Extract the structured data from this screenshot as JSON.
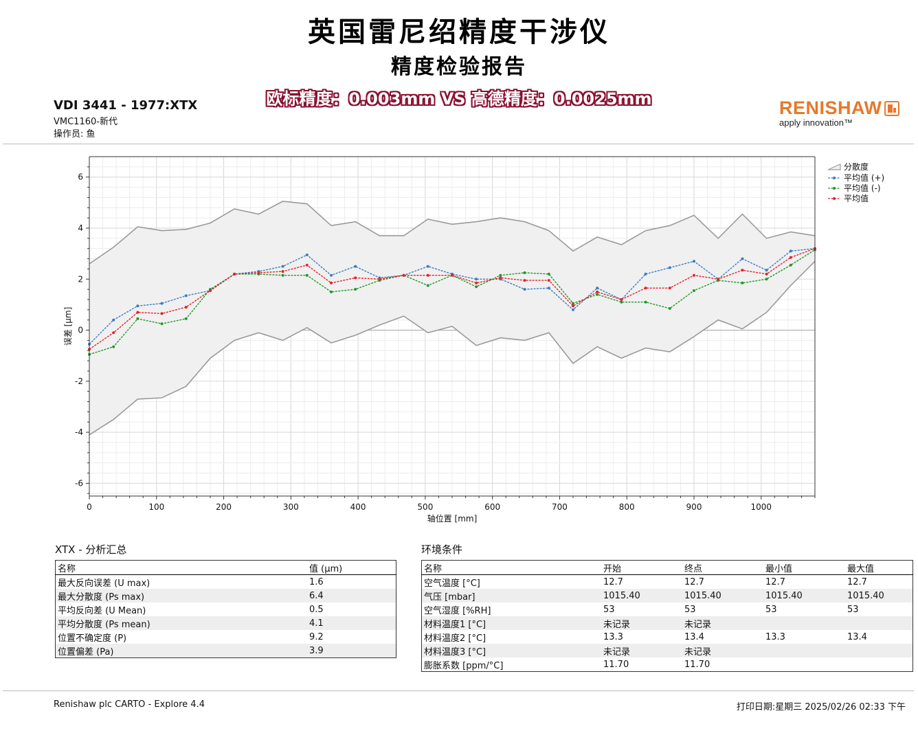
{
  "header": {
    "title": "英国雷尼绍精度干涉仪",
    "subtitle": "精度检验报告",
    "comparison": "欧标精度：0.003mm VS 高德精度：0.0025mm",
    "standard": "VDI 3441 - 1977:XTX",
    "machine": "VMC1160-新代",
    "operator": "操作员: 鱼"
  },
  "logo": {
    "name": "RENISHAW",
    "tagline": "apply innovation™"
  },
  "chart_data": {
    "type": "line",
    "xlabel": "轴位置 [mm]",
    "ylabel": "误差 [μm]",
    "xlim": [
      0,
      1080
    ],
    "ylim": [
      -6.5,
      6.8
    ],
    "xticks": [
      0,
      100,
      200,
      300,
      400,
      500,
      600,
      700,
      800,
      900,
      1000
    ],
    "yticks": [
      -6,
      -4,
      -2,
      0,
      2,
      4,
      6
    ],
    "grid": true,
    "legend_position": "top-right",
    "x": [
      0,
      36,
      72,
      108,
      144,
      180,
      216,
      252,
      288,
      324,
      360,
      396,
      432,
      468,
      504,
      540,
      576,
      612,
      648,
      684,
      720,
      756,
      792,
      828,
      864,
      900,
      936,
      972,
      1008,
      1044,
      1080
    ],
    "band": {
      "name": "分散度",
      "upper": [
        2.6,
        3.25,
        4.05,
        3.9,
        3.95,
        4.2,
        4.75,
        4.55,
        5.05,
        4.95,
        4.1,
        4.25,
        3.7,
        3.7,
        4.35,
        4.15,
        4.25,
        4.4,
        4.25,
        3.9,
        3.1,
        3.65,
        3.35,
        3.9,
        4.1,
        4.5,
        3.6,
        4.55,
        3.6,
        3.85,
        3.7
      ],
      "lower": [
        -4.1,
        -3.5,
        -2.7,
        -2.65,
        -2.2,
        -1.1,
        -0.4,
        -0.1,
        -0.4,
        0.1,
        -0.5,
        -0.2,
        0.2,
        0.55,
        -0.1,
        0.15,
        -0.6,
        -0.3,
        -0.4,
        -0.1,
        -1.3,
        -0.65,
        -1.1,
        -0.7,
        -0.85,
        -0.25,
        0.4,
        0.05,
        0.7,
        1.75,
        2.7
      ],
      "color": "#9a9a9a"
    },
    "series": [
      {
        "name": "平均值 (+)",
        "color": "#3b7dc4",
        "values": [
          -0.55,
          0.4,
          0.95,
          1.05,
          1.35,
          1.55,
          2.2,
          2.3,
          2.5,
          2.95,
          2.15,
          2.5,
          2.05,
          2.15,
          2.5,
          2.2,
          2.0,
          2.0,
          1.6,
          1.65,
          0.8,
          1.65,
          1.2,
          2.2,
          2.45,
          2.7,
          2.0,
          2.8,
          2.35,
          3.1,
          3.2
        ]
      },
      {
        "name": "平均值 (-)",
        "color": "#1f9a2a",
        "values": [
          -0.95,
          -0.65,
          0.45,
          0.25,
          0.45,
          1.6,
          2.2,
          2.2,
          2.15,
          2.15,
          1.5,
          1.6,
          1.95,
          2.15,
          1.75,
          2.15,
          1.7,
          2.15,
          2.25,
          2.2,
          1.05,
          1.4,
          1.1,
          1.1,
          0.85,
          1.55,
          1.95,
          1.85,
          2.0,
          2.55,
          3.15
        ]
      },
      {
        "name": "平均值",
        "color": "#e8202a",
        "values": [
          -0.75,
          -0.1,
          0.7,
          0.65,
          0.9,
          1.55,
          2.2,
          2.25,
          2.3,
          2.55,
          1.85,
          2.05,
          2.0,
          2.15,
          2.15,
          2.15,
          1.85,
          2.05,
          1.95,
          1.95,
          0.95,
          1.5,
          1.2,
          1.65,
          1.65,
          2.15,
          2.0,
          2.35,
          2.2,
          2.85,
          3.2
        ]
      }
    ]
  },
  "summary": {
    "title": "XTX - 分析汇总",
    "headers": [
      "名称",
      "值 (μm)"
    ],
    "rows": [
      [
        "最大反向误差 (U max)",
        "1.6"
      ],
      [
        "最大分散度 (Ps max)",
        "6.4"
      ],
      [
        "平均反向差 (U Mean)",
        "0.5"
      ],
      [
        "平均分散度 (Ps mean)",
        "4.1"
      ],
      [
        "位置不确定度 (P)",
        "9.2"
      ],
      [
        "位置偏差 (Pa)",
        "3.9"
      ]
    ]
  },
  "environment": {
    "title": "环境条件",
    "headers": [
      "名称",
      "开始",
      "终点",
      "最小值",
      "最大值"
    ],
    "rows": [
      [
        "空气温度 [°C]",
        "12.7",
        "12.7",
        "12.7",
        "12.7"
      ],
      [
        "气压 [mbar]",
        "1015.40",
        "1015.40",
        "1015.40",
        "1015.40"
      ],
      [
        "空气湿度 [%RH]",
        "53",
        "53",
        "53",
        "53"
      ],
      [
        "材料温度1 [°C]",
        "未记录",
        "未记录",
        "",
        ""
      ],
      [
        "材料温度2 [°C]",
        "13.3",
        "13.4",
        "13.3",
        "13.4"
      ],
      [
        "材料温度3 [°C]",
        "未记录",
        "未记录",
        "",
        ""
      ],
      [
        "膨胀系数 [ppm/°C]",
        "11.70",
        "11.70",
        "",
        ""
      ]
    ]
  },
  "footer": {
    "software": "Renishaw plc CARTO - Explore 4.4",
    "print_date": "打印日期:星期三 2025/02/26 02:33 下午"
  }
}
